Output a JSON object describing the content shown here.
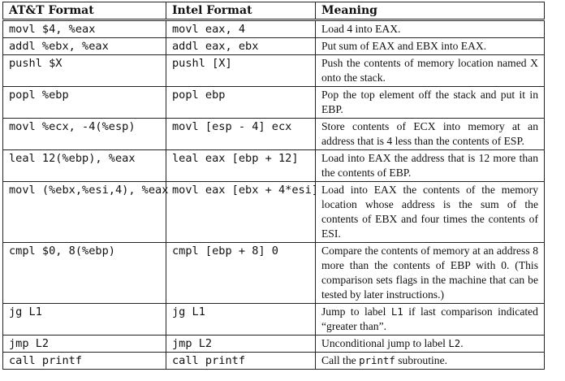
{
  "table": {
    "headers": [
      "AT&T Format",
      "Intel Format",
      "Meaning"
    ],
    "rows": [
      {
        "att": "movl $4, %eax",
        "intel": "movl eax, 4",
        "meaning": [
          {
            "t": "Load 4 into EAX."
          }
        ]
      },
      {
        "att": "addl %ebx, %eax",
        "intel": "addl eax, ebx",
        "meaning": [
          {
            "t": "Put sum of EAX and EBX into EAX."
          }
        ]
      },
      {
        "att": "pushl $X",
        "intel": "pushl [X]",
        "meaning": [
          {
            "t": "Push the contents of memory location named X onto the stack."
          }
        ]
      },
      {
        "att": "popl %ebp",
        "intel": "popl ebp",
        "meaning": [
          {
            "t": "Pop the top element off the stack and put it in EBP."
          }
        ]
      },
      {
        "att": "movl %ecx, -4(%esp)",
        "intel": "movl [esp - 4] ecx",
        "meaning": [
          {
            "t": "Store contents of ECX into memory at an address that is 4 less than the contents of ESP."
          }
        ]
      },
      {
        "att": "leal 12(%ebp), %eax",
        "intel": "leal eax [ebp + 12]",
        "meaning": [
          {
            "t": "Load into EAX the address that is 12 more than the contents of EBP."
          }
        ]
      },
      {
        "att": "movl (%ebx,%esi,4), %eax",
        "intel": "movl eax [ebx + 4*esi]",
        "meaning": [
          {
            "t": "Load into EAX the contents of the mem­ory location whose address is the sum of the contents of EBX and four times the contents of ESI."
          }
        ]
      },
      {
        "att": "cmpl $0, 8(%ebp)",
        "intel": "cmpl [ebp + 8] 0",
        "meaning": [
          {
            "t": "Compare the contents of memory at an address 8 more than the contents of EBP with 0. (This comparison sets flags in the machine that can be tested by later in­structions.)"
          }
        ]
      },
      {
        "att": "jg L1",
        "intel": "jg L1",
        "meaning": [
          {
            "t": "Jump to label "
          },
          {
            "t": "L1",
            "code": true
          },
          {
            "t": " if last comparison indi­cated “greater than”."
          }
        ]
      },
      {
        "att": "jmp L2",
        "intel": "jmp L2",
        "meaning": [
          {
            "t": "Unconditional jump to label "
          },
          {
            "t": "L2",
            "code": true
          },
          {
            "t": "."
          }
        ]
      },
      {
        "att": "call printf",
        "intel": "call printf",
        "meaning": [
          {
            "t": "Call the "
          },
          {
            "t": "printf",
            "code": true
          },
          {
            "t": " subroutine."
          }
        ]
      }
    ]
  }
}
